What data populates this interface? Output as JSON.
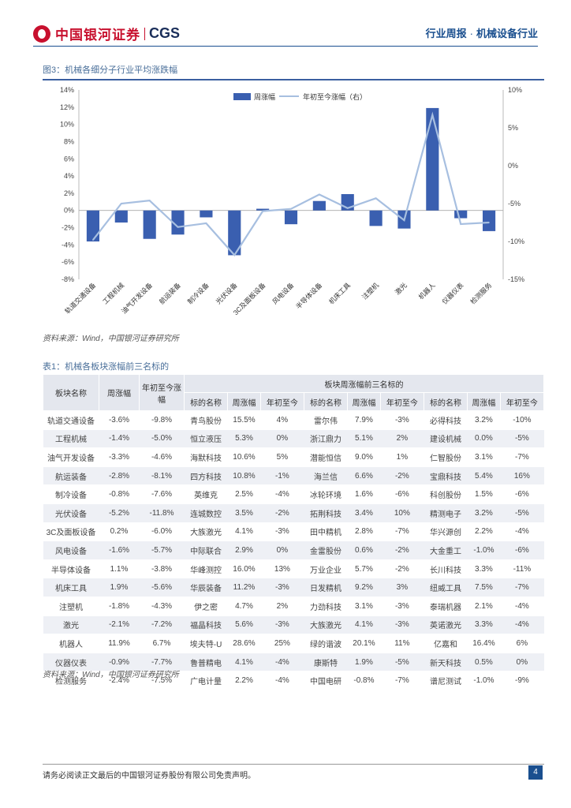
{
  "header": {
    "logo_cn": "中国银河证券",
    "logo_en": "CGS",
    "report_type": "行业周报",
    "separator": "·",
    "industry": "机械设备行业"
  },
  "figure": {
    "title": "图3：机械各细分子行业平均涨跌幅",
    "source": "资料来源：Wind，中国银河证券研究所"
  },
  "chart_data": {
    "type": "bar",
    "title": "图3：机械各细分子行业平均涨跌幅",
    "categories": [
      "轨道交通设备",
      "工程机械",
      "油气开发设备",
      "航运装备",
      "制冷设备",
      "光伏设备",
      "3C及面板设备",
      "风电设备",
      "半导体设备",
      "机床工具",
      "注塑机",
      "激光",
      "机器人",
      "仪器仪表",
      "检测服务"
    ],
    "series": [
      {
        "name": "周涨幅",
        "axis": "left",
        "type": "bar",
        "color": "#3a5fb0",
        "values": [
          -3.6,
          -1.4,
          -3.3,
          -2.8,
          -0.8,
          -5.2,
          0.2,
          -1.6,
          1.1,
          1.9,
          -1.8,
          -2.1,
          11.9,
          -0.9,
          -2.4
        ]
      },
      {
        "name": "年初至今涨幅（右）",
        "axis": "right",
        "type": "line",
        "color": "#a7bfe0",
        "values": [
          -9.8,
          -5.0,
          -4.6,
          -8.1,
          -7.6,
          -11.8,
          -6.0,
          -5.7,
          -3.8,
          -5.6,
          -4.3,
          -7.2,
          6.7,
          -7.7,
          -7.5
        ]
      }
    ],
    "y_left": {
      "min": -8,
      "max": 14,
      "step": 2,
      "suffix": "%"
    },
    "y_right": {
      "min": -15,
      "max": 10,
      "step": 5,
      "suffix": "%"
    },
    "legend": "top-center",
    "grid": false
  },
  "table": {
    "title": "表1：机械各板块涨幅前三名标的",
    "source": "资料来源：Wind，中国银河证券研究所",
    "col_sector": "板块名称",
    "col_week": "周涨幅",
    "col_ytd": "年初至今涨幅",
    "group_header": "板块周涨幅前三名标的",
    "sub_headers": [
      "标的名称",
      "周涨幅",
      "年初至今",
      "标的名称",
      "周涨幅",
      "年初至今",
      "标的名称",
      "周涨幅",
      "年初至今"
    ],
    "rows": [
      [
        "轨道交通设备",
        "-3.6%",
        "-9.8%",
        "青鸟股份",
        "15.5%",
        "4%",
        "雷尔伟",
        "7.9%",
        "-3%",
        "必得科技",
        "3.2%",
        "-10%"
      ],
      [
        "工程机械",
        "-1.4%",
        "-5.0%",
        "恒立液压",
        "5.3%",
        "0%",
        "浙江鼎力",
        "5.1%",
        "2%",
        "建设机械",
        "0.0%",
        "-5%"
      ],
      [
        "油气开发设备",
        "-3.3%",
        "-4.6%",
        "海默科技",
        "10.6%",
        "5%",
        "潜能恒信",
        "9.0%",
        "1%",
        "仁智股份",
        "3.1%",
        "-7%"
      ],
      [
        "航运装备",
        "-2.8%",
        "-8.1%",
        "四方科技",
        "10.8%",
        "-1%",
        "海兰信",
        "6.6%",
        "-2%",
        "宝鼎科技",
        "5.4%",
        "16%"
      ],
      [
        "制冷设备",
        "-0.8%",
        "-7.6%",
        "英维克",
        "2.5%",
        "-4%",
        "冰轮环境",
        "1.6%",
        "-6%",
        "科创股份",
        "1.5%",
        "-6%"
      ],
      [
        "光伏设备",
        "-5.2%",
        "-11.8%",
        "连城数控",
        "3.5%",
        "-2%",
        "拓荆科技",
        "3.4%",
        "10%",
        "精测电子",
        "3.2%",
        "-5%"
      ],
      [
        "3C及面板设备",
        "0.2%",
        "-6.0%",
        "大族激光",
        "4.1%",
        "-3%",
        "田中精机",
        "2.8%",
        "-7%",
        "华兴源创",
        "2.2%",
        "-4%"
      ],
      [
        "风电设备",
        "-1.6%",
        "-5.7%",
        "中际联合",
        "2.9%",
        "0%",
        "金雷股份",
        "0.6%",
        "-2%",
        "大金重工",
        "-1.0%",
        "-6%"
      ],
      [
        "半导体设备",
        "1.1%",
        "-3.8%",
        "华峰测控",
        "16.0%",
        "13%",
        "万业企业",
        "5.7%",
        "-2%",
        "长川科技",
        "3.3%",
        "-11%"
      ],
      [
        "机床工具",
        "1.9%",
        "-5.6%",
        "华辰装备",
        "11.2%",
        "-3%",
        "日发精机",
        "9.2%",
        "3%",
        "纽威工具",
        "7.5%",
        "-7%"
      ],
      [
        "注塑机",
        "-1.8%",
        "-4.3%",
        "伊之密",
        "4.7%",
        "2%",
        "力劲科技",
        "3.1%",
        "-3%",
        "泰瑞机器",
        "2.1%",
        "-4%"
      ],
      [
        "激光",
        "-2.1%",
        "-7.2%",
        "福晶科技",
        "5.6%",
        "-3%",
        "大族激光",
        "4.1%",
        "-3%",
        "英诺激光",
        "3.3%",
        "-4%"
      ],
      [
        "机器人",
        "11.9%",
        "6.7%",
        "埃夫特-U",
        "28.6%",
        "25%",
        "绿的谐波",
        "20.1%",
        "11%",
        "亿嘉和",
        "16.4%",
        "6%"
      ],
      [
        "仪器仪表",
        "-0.9%",
        "-7.7%",
        "鲁普精电",
        "4.1%",
        "-4%",
        "康斯特",
        "1.9%",
        "-5%",
        "新天科技",
        "0.5%",
        "0%"
      ],
      [
        "检测服务",
        "-2.4%",
        "-7.5%",
        "广电计量",
        "2.2%",
        "-4%",
        "中国电研",
        "-0.8%",
        "-7%",
        "谱尼测试",
        "-1.0%",
        "-9%"
      ]
    ]
  },
  "footer": {
    "disclaimer": "请务必阅读正文最后的中国银河证券股份有限公司免责声明。",
    "page": "4"
  }
}
